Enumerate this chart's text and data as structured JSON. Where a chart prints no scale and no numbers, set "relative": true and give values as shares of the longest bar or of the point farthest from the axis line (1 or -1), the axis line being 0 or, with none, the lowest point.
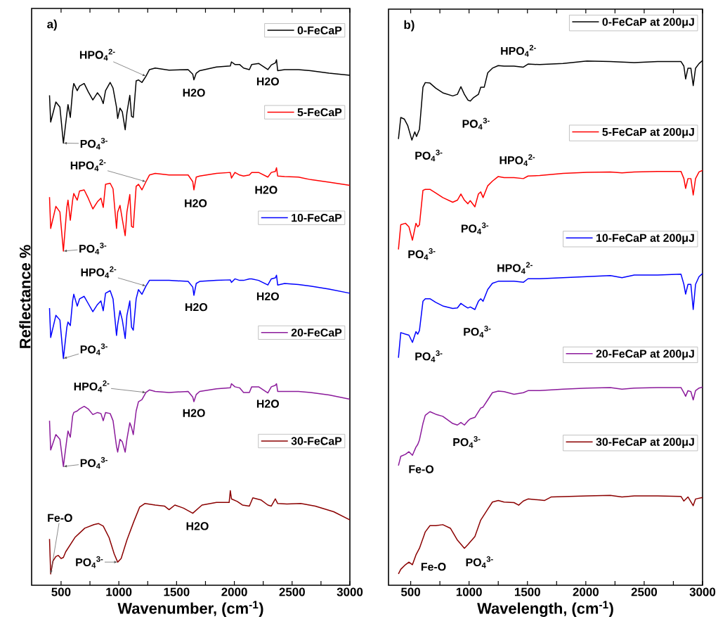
{
  "chart_data": [
    {
      "type": "line",
      "relative": true,
      "xlabel": "Wavenumber, (cm$^{-1}$)",
      "ylabel": "Reflectance %",
      "xlim": [
        245,
        3000
      ],
      "xticks": [
        500,
        {
          "value": 750,
          "label": null
        },
        1000,
        {
          "value": 1250,
          "label": null
        },
        1500,
        {
          "value": 1750,
          "label": null
        },
        2000,
        {
          "value": 2250,
          "label": null
        },
        2500,
        {
          "value": 2750,
          "label": null
        },
        3000
      ],
      "tick_labels": "x",
      "legend": "right",
      "series": [
        {
          "name": "0-FeCaP",
          "color": "#000000",
          "x": [
            400,
            410,
            455,
            490,
            520,
            550,
            560,
            580,
            600,
            610,
            640,
            660,
            700,
            735,
            775,
            815,
            845,
            865,
            885,
            925,
            950,
            980,
            990,
            1010,
            1030,
            1055,
            1070,
            1095,
            1110,
            1125,
            1150,
            1170,
            1200,
            1235,
            1265,
            1315,
            1435,
            1600,
            1640,
            1650,
            1670,
            1700,
            1845,
            1965,
            1975,
            2005,
            2045,
            2080,
            2130,
            2150,
            2210,
            2290,
            2320,
            2355,
            2365,
            2375,
            2435,
            2555,
            2660,
            2820,
            3000
          ],
          "values": [
            0.931,
            0.879,
            0.918,
            0.908,
            0.838,
            0.895,
            0.913,
            0.888,
            0.94,
            0.954,
            0.94,
            0.949,
            0.954,
            0.938,
            0.922,
            0.936,
            0.927,
            0.915,
            0.94,
            0.956,
            0.945,
            0.908,
            0.886,
            0.906,
            0.899,
            0.864,
            0.897,
            0.931,
            0.89,
            0.888,
            0.959,
            0.961,
            0.956,
            0.968,
            0.981,
            0.984,
            0.98,
            0.981,
            0.972,
            0.961,
            0.974,
            0.979,
            0.986,
            0.988,
            0.996,
            0.991,
            0.991,
            0.984,
            0.981,
            0.991,
            0.993,
            0.981,
            0.99,
            0.994,
            1.0,
            0.979,
            0.981,
            0.981,
            0.979,
            0.974,
            0.97
          ]
        },
        {
          "name": "5-FeCaP",
          "color": "#ff0000",
          "x": [
            400,
            410,
            455,
            490,
            520,
            550,
            560,
            580,
            600,
            610,
            640,
            660,
            700,
            735,
            775,
            815,
            845,
            865,
            885,
            925,
            950,
            980,
            990,
            1010,
            1030,
            1055,
            1070,
            1095,
            1110,
            1125,
            1150,
            1170,
            1200,
            1235,
            1265,
            1315,
            1435,
            1600,
            1640,
            1650,
            1670,
            1700,
            1845,
            1965,
            1975,
            2005,
            2045,
            2080,
            2130,
            2150,
            2210,
            2290,
            2320,
            2355,
            2365,
            2375,
            2435,
            2555,
            2660,
            2820,
            3000
          ],
          "values": [
            0.733,
            0.672,
            0.715,
            0.704,
            0.628,
            0.713,
            0.727,
            0.688,
            0.727,
            0.74,
            0.727,
            0.745,
            0.747,
            0.731,
            0.71,
            0.724,
            0.731,
            0.713,
            0.758,
            0.76,
            0.749,
            0.672,
            0.704,
            0.717,
            0.69,
            0.658,
            0.704,
            0.738,
            0.676,
            0.674,
            0.754,
            0.758,
            0.747,
            0.763,
            0.776,
            0.779,
            0.776,
            0.776,
            0.763,
            0.747,
            0.772,
            0.774,
            0.779,
            0.781,
            0.77,
            0.781,
            0.776,
            0.774,
            0.776,
            0.781,
            0.781,
            0.772,
            0.781,
            0.783,
            0.79,
            0.774,
            0.773,
            0.772,
            0.767,
            0.762,
            0.756
          ]
        },
        {
          "name": "10-FeCaP",
          "color": "#0000ff",
          "x": [
            400,
            410,
            455,
            490,
            520,
            550,
            560,
            580,
            600,
            610,
            640,
            660,
            700,
            735,
            775,
            815,
            845,
            865,
            885,
            925,
            950,
            980,
            990,
            1010,
            1030,
            1055,
            1070,
            1095,
            1110,
            1125,
            1150,
            1170,
            1200,
            1235,
            1265,
            1315,
            1435,
            1600,
            1640,
            1650,
            1670,
            1700,
            1845,
            1965,
            1975,
            2005,
            2045,
            2080,
            2130,
            2150,
            2210,
            2290,
            2320,
            2355,
            2365,
            2375,
            2435,
            2555,
            2660,
            2820,
            3000
          ],
          "values": [
            0.517,
            0.46,
            0.503,
            0.494,
            0.419,
            0.48,
            0.49,
            0.483,
            0.531,
            0.544,
            0.521,
            0.535,
            0.54,
            0.526,
            0.51,
            0.524,
            0.531,
            0.512,
            0.546,
            0.551,
            0.535,
            0.464,
            0.485,
            0.512,
            0.494,
            0.458,
            0.503,
            0.531,
            0.48,
            0.474,
            0.535,
            0.553,
            0.544,
            0.56,
            0.571,
            0.571,
            0.571,
            0.569,
            0.558,
            0.542,
            0.565,
            0.569,
            0.571,
            0.572,
            0.567,
            0.574,
            0.571,
            0.571,
            0.574,
            0.574,
            0.571,
            0.562,
            0.574,
            0.576,
            0.581,
            0.562,
            0.565,
            0.563,
            0.56,
            0.554,
            0.546
          ]
        },
        {
          "name": "20-FeCaP",
          "color": "#8b1a9b",
          "x": [
            400,
            410,
            455,
            490,
            520,
            550,
            560,
            580,
            600,
            610,
            640,
            660,
            700,
            735,
            775,
            815,
            845,
            865,
            885,
            925,
            950,
            980,
            990,
            1010,
            1030,
            1055,
            1070,
            1095,
            1110,
            1125,
            1150,
            1170,
            1200,
            1235,
            1265,
            1315,
            1435,
            1600,
            1640,
            1650,
            1670,
            1700,
            1845,
            1965,
            1975,
            2005,
            2045,
            2080,
            2130,
            2150,
            2210,
            2290,
            2320,
            2355,
            2365,
            2375,
            2435,
            2555,
            2660,
            2820,
            3000
          ],
          "values": [
            0.298,
            0.241,
            0.271,
            0.262,
            0.209,
            0.262,
            0.278,
            0.266,
            0.307,
            0.314,
            0.317,
            0.321,
            0.326,
            0.321,
            0.31,
            0.314,
            0.312,
            0.298,
            0.314,
            0.312,
            0.298,
            0.248,
            0.237,
            0.262,
            0.257,
            0.237,
            0.262,
            0.294,
            0.285,
            0.271,
            0.317,
            0.335,
            0.339,
            0.353,
            0.358,
            0.355,
            0.353,
            0.355,
            0.344,
            0.335,
            0.349,
            0.355,
            0.36,
            0.362,
            0.37,
            0.364,
            0.362,
            0.353,
            0.353,
            0.364,
            0.364,
            0.352,
            0.364,
            0.367,
            0.37,
            0.355,
            0.355,
            0.355,
            0.353,
            0.348,
            0.34
          ]
        },
        {
          "name": "30-FeCaP",
          "color": "#8b0000",
          "x": [
            400,
            410,
            430,
            455,
            475,
            500,
            520,
            540,
            620,
            705,
            785,
            825,
            865,
            915,
            960,
            990,
            1020,
            1070,
            1130,
            1180,
            1225,
            1315,
            1395,
            1435,
            1485,
            1560,
            1640,
            1720,
            1845,
            1955,
            1965,
            1975,
            2025,
            2070,
            2130,
            2160,
            2230,
            2290,
            2320,
            2355,
            2375,
            2455,
            2575,
            2700,
            2860,
            3000
          ],
          "values": [
            0.068,
            0.0,
            0.025,
            0.034,
            0.036,
            0.03,
            0.032,
            0.043,
            0.071,
            0.089,
            0.096,
            0.098,
            0.093,
            0.071,
            0.039,
            0.023,
            0.03,
            0.066,
            0.102,
            0.13,
            0.137,
            0.134,
            0.132,
            0.125,
            0.134,
            0.128,
            0.118,
            0.134,
            0.139,
            0.139,
            0.162,
            0.146,
            0.141,
            0.134,
            0.132,
            0.148,
            0.144,
            0.134,
            0.132,
            0.146,
            0.137,
            0.136,
            0.137,
            0.132,
            0.121,
            0.105
          ]
        }
      ],
      "annotations": [
        "a)",
        {
          "text": "HPO$_{4}$$^{2-}$",
          "x": 1235,
          "y": 0.968
        },
        {
          "text": "H2O",
          "x": 1650,
          "y": 0.961
        },
        {
          "text": "H2O",
          "x": 2290,
          "y": 0.981
        },
        {
          "text": "PO$_{4}$$^{3-}$",
          "x": 520,
          "y": 0.838
        },
        {
          "text": "HPO$_{4}$$^{2-}$",
          "x": 1235,
          "y": 0.763
        },
        {
          "text": "H2O",
          "x": 1650,
          "y": 0.747
        },
        {
          "text": "H2O",
          "x": 2290,
          "y": 0.772
        },
        {
          "text": "PO$_{4}$$^{3-}$",
          "x": 520,
          "y": 0.628
        },
        {
          "text": "HPO$_{4}$$^{2-}$",
          "x": 1235,
          "y": 0.56
        },
        {
          "text": "H2O",
          "x": 1650,
          "y": 0.542
        },
        {
          "text": "H2O",
          "x": 2290,
          "y": 0.562
        },
        {
          "text": "PO$_{4}$$^{3-}$",
          "x": 520,
          "y": 0.419
        },
        {
          "text": "HPO$_{4}$$^{2-}$",
          "x": 1235,
          "y": 0.353
        },
        {
          "text": "H2O",
          "x": 1650,
          "y": 0.335
        },
        {
          "text": "H2O",
          "x": 2290,
          "y": 0.352
        },
        {
          "text": "PO$_{4}$$^{3-}$",
          "x": 520,
          "y": 0.209
        },
        {
          "text": "Fe-O",
          "x": 410,
          "y": 0.0
        },
        {
          "text": "PO$_{4}$$^{3-}$",
          "x": 990,
          "y": 0.023
        },
        {
          "text": "H2O",
          "x": 1640,
          "y": 0.118
        }
      ]
    },
    {
      "type": "line",
      "relative": true,
      "xlabel": "Wavelength, (cm$^{-1}$)",
      "xlim": [
        310,
        3000
      ],
      "xticks": [
        500,
        {
          "value": 750,
          "label": null
        },
        1000,
        {
          "value": 1250,
          "label": null
        },
        1500,
        {
          "value": 1750,
          "label": null
        },
        2000,
        {
          "value": 2250,
          "label": null
        },
        2500,
        {
          "value": 2750,
          "label": null
        },
        3000
      ],
      "tick_labels": "x",
      "legend": "right",
      "series": [
        {
          "name": "0-FeCaP at 200μJ",
          "color": "#000000",
          "x": [
            395,
            415,
            445,
            475,
            510,
            535,
            550,
            575,
            605,
            625,
            665,
            715,
            775,
            860,
            900,
            930,
            960,
            990,
            1010,
            1040,
            1080,
            1100,
            1130,
            1160,
            1200,
            1250,
            1300,
            1385,
            1465,
            1505,
            1605,
            1805,
            2010,
            2210,
            2415,
            2615,
            2815,
            2840,
            2855,
            2875,
            2900,
            2920,
            2940,
            2970,
            3000
          ],
          "values": [
            0.847,
            0.889,
            0.886,
            0.873,
            0.845,
            0.861,
            0.852,
            0.866,
            0.948,
            0.957,
            0.956,
            0.946,
            0.937,
            0.931,
            0.934,
            0.949,
            0.934,
            0.923,
            0.921,
            0.928,
            0.934,
            0.948,
            0.948,
            0.976,
            0.985,
            0.99,
            0.989,
            0.989,
            0.987,
            0.993,
            0.992,
            0.994,
            0.999,
            0.998,
            0.996,
            0.998,
            0.998,
            0.989,
            0.964,
            0.985,
            0.985,
            0.951,
            0.985,
            0.994,
            1.0
          ]
        },
        {
          "name": "5-FeCaP at 200μJ",
          "color": "#ff0000",
          "x": [
            395,
            415,
            455,
            485,
            515,
            545,
            560,
            575,
            605,
            625,
            665,
            715,
            775,
            860,
            900,
            930,
            960,
            990,
            1010,
            1050,
            1080,
            1100,
            1120,
            1160,
            1200,
            1250,
            1300,
            1385,
            1465,
            1505,
            1605,
            1805,
            2010,
            2210,
            2310,
            2415,
            2615,
            2815,
            2840,
            2855,
            2875,
            2900,
            2920,
            2940,
            2970,
            3000
          ],
          "values": [
            0.632,
            0.68,
            0.683,
            0.676,
            0.65,
            0.683,
            0.676,
            0.68,
            0.747,
            0.749,
            0.749,
            0.742,
            0.733,
            0.724,
            0.728,
            0.74,
            0.728,
            0.721,
            0.727,
            0.715,
            0.74,
            0.744,
            0.733,
            0.756,
            0.765,
            0.774,
            0.772,
            0.772,
            0.77,
            0.775,
            0.776,
            0.78,
            0.782,
            0.783,
            0.781,
            0.783,
            0.784,
            0.784,
            0.77,
            0.751,
            0.77,
            0.77,
            0.738,
            0.77,
            0.783,
            0.786
          ]
        },
        {
          "name": "10-FeCaP at 200μJ",
          "color": "#0000ff",
          "x": [
            395,
            415,
            455,
            485,
            515,
            545,
            560,
            575,
            605,
            625,
            665,
            715,
            775,
            860,
            900,
            930,
            960,
            990,
            1010,
            1050,
            1080,
            1100,
            1120,
            1160,
            1200,
            1250,
            1300,
            1385,
            1465,
            1505,
            1605,
            1805,
            2010,
            2210,
            2310,
            2415,
            2615,
            2815,
            2840,
            2855,
            2875,
            2900,
            2920,
            2940,
            2970,
            3000
          ],
          "values": [
            0.421,
            0.47,
            0.467,
            0.465,
            0.451,
            0.472,
            0.467,
            0.474,
            0.531,
            0.536,
            0.536,
            0.529,
            0.522,
            0.517,
            0.518,
            0.527,
            0.522,
            0.518,
            0.52,
            0.515,
            0.531,
            0.536,
            0.531,
            0.554,
            0.566,
            0.57,
            0.57,
            0.57,
            0.568,
            0.575,
            0.575,
            0.577,
            0.579,
            0.581,
            0.577,
            0.582,
            0.582,
            0.584,
            0.564,
            0.545,
            0.564,
            0.564,
            0.515,
            0.564,
            0.579,
            0.585
          ]
        },
        {
          "name": "20-FeCaP at 200μJ",
          "color": "#8b1a9b",
          "x": [
            395,
            415,
            455,
            485,
            515,
            545,
            560,
            575,
            605,
            625,
            665,
            715,
            775,
            860,
            900,
            930,
            960,
            990,
            1010,
            1050,
            1080,
            1100,
            1120,
            1160,
            1200,
            1250,
            1300,
            1385,
            1465,
            1505,
            1605,
            1805,
            2010,
            2210,
            2310,
            2415,
            2615,
            2815,
            2840,
            2855,
            2875,
            2900,
            2920,
            2940,
            2970,
            3000
          ],
          "values": [
            0.211,
            0.229,
            0.233,
            0.238,
            0.231,
            0.247,
            0.252,
            0.261,
            0.293,
            0.309,
            0.316,
            0.311,
            0.307,
            0.293,
            0.29,
            0.295,
            0.29,
            0.298,
            0.302,
            0.305,
            0.316,
            0.323,
            0.325,
            0.339,
            0.353,
            0.356,
            0.355,
            0.35,
            0.353,
            0.357,
            0.357,
            0.36,
            0.362,
            0.363,
            0.36,
            0.362,
            0.363,
            0.363,
            0.353,
            0.346,
            0.357,
            0.355,
            0.339,
            0.357,
            0.362,
            0.364
          ]
        },
        {
          "name": "30-FeCaP at 200μJ",
          "color": "#8b0000",
          "x": [
            395,
            415,
            455,
            485,
            515,
            545,
            575,
            605,
            625,
            665,
            715,
            775,
            840,
            900,
            960,
            990,
            1050,
            1100,
            1160,
            1200,
            1250,
            1300,
            1385,
            1425,
            1465,
            1505,
            1605,
            1645,
            1705,
            2010,
            2210,
            2310,
            2415,
            2615,
            2815,
            2840,
            2875,
            2920,
            2940,
            3000
          ],
          "values": [
            0.0,
            0.009,
            0.018,
            0.023,
            0.018,
            0.037,
            0.05,
            0.069,
            0.082,
            0.094,
            0.094,
            0.096,
            0.089,
            0.066,
            0.05,
            0.057,
            0.073,
            0.105,
            0.126,
            0.14,
            0.143,
            0.14,
            0.139,
            0.134,
            0.142,
            0.146,
            0.144,
            0.143,
            0.15,
            0.152,
            0.153,
            0.15,
            0.152,
            0.152,
            0.151,
            0.142,
            0.15,
            0.133,
            0.146,
            0.149
          ]
        }
      ],
      "annotations": [
        "b)",
        {
          "text": "HPO$_{4}$$^{2-}$",
          "x": 1465,
          "y": 0.987
        },
        {
          "text": "PO$_{4}$$^{3-}$",
          "x": 990,
          "y": 0.923
        },
        {
          "text": "PO$_{4}$$^{3-}$",
          "x": 510,
          "y": 0.845
        },
        {
          "text": "HPO$_{4}$$^{2-}$",
          "x": 1465,
          "y": 0.77
        },
        {
          "text": "PO$_{4}$$^{3-}$",
          "x": 1050,
          "y": 0.715
        },
        {
          "text": "PO$_{4}$$^{3-}$",
          "x": 515,
          "y": 0.65
        },
        {
          "text": "HPO$_{4}$$^{2-}$",
          "x": 1465,
          "y": 0.568
        },
        {
          "text": "PO$_{4}$$^{3-}$",
          "x": 1050,
          "y": 0.515
        },
        {
          "text": "PO$_{4}$$^{3-}$",
          "x": 515,
          "y": 0.451
        },
        {
          "text": "PO$_{4}$$^{3-}$",
          "x": 960,
          "y": 0.29
        },
        {
          "text": "Fe-O",
          "x": 515,
          "y": 0.231
        },
        {
          "text": "Fe-O",
          "x": 515,
          "y": 0.018
        },
        {
          "text": "PO$_{4}$$^{3-}$",
          "x": 960,
          "y": 0.05
        }
      ]
    }
  ]
}
